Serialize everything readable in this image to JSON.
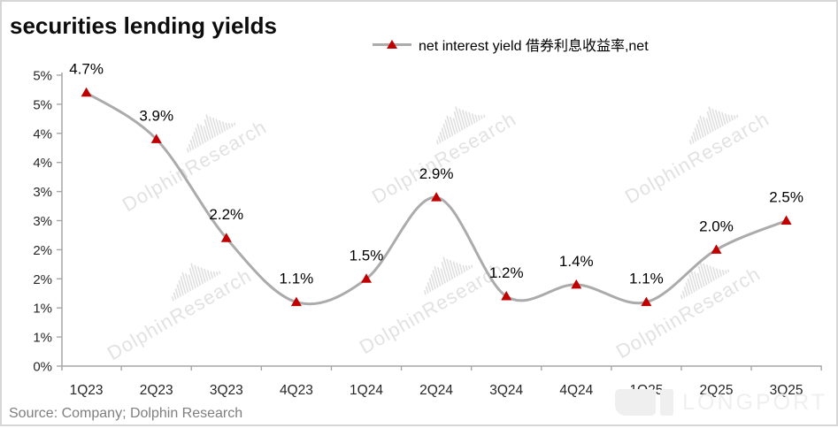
{
  "title": "securities lending yields",
  "legend": {
    "label": "net interest yield 借券利息收益率,net"
  },
  "source": "Source: Company; Dolphin Research",
  "watermark": {
    "text": "DolphinResearch",
    "brand": "LONGPORT"
  },
  "colors": {
    "line": "#ababab",
    "marker": "#c00000",
    "axis": "#a6a6a6",
    "data_label": "#000000",
    "tick_label": "#262626",
    "watermark_text": "#e2e2e2",
    "brand_watermark": "#efefef",
    "source_text": "#7f7f7f"
  },
  "chart_data": {
    "type": "line",
    "title": "securities lending yields",
    "categories": [
      "1Q23",
      "2Q23",
      "3Q23",
      "4Q23",
      "1Q24",
      "2Q24",
      "3Q24",
      "4Q24",
      "1Q25",
      "2Q25",
      "3Q25"
    ],
    "series": [
      {
        "name": "net interest yield 借券利息收益率,net",
        "values": [
          4.7,
          3.9,
          2.2,
          1.1,
          1.5,
          2.9,
          1.2,
          1.4,
          1.1,
          2.0,
          2.5
        ],
        "data_labels": [
          "4.7%",
          "3.9%",
          "2.2%",
          "1.1%",
          "1.5%",
          "2.9%",
          "1.2%",
          "1.4%",
          "1.1%",
          "2.0%",
          "2.5%"
        ],
        "line_color": "#ababab",
        "marker": "triangle",
        "marker_color": "#c00000",
        "smooth": true
      }
    ],
    "xlabel": "",
    "ylabel": "",
    "ylim": [
      0,
      5
    ],
    "y_step": 0.5,
    "y_tick_labels_top_to_bottom": [
      "5%",
      "5%",
      "4%",
      "4%",
      "3%",
      "3%",
      "2%",
      "2%",
      "1%",
      "1%",
      "0%"
    ],
    "grid": false,
    "legend_position": "top-center"
  }
}
